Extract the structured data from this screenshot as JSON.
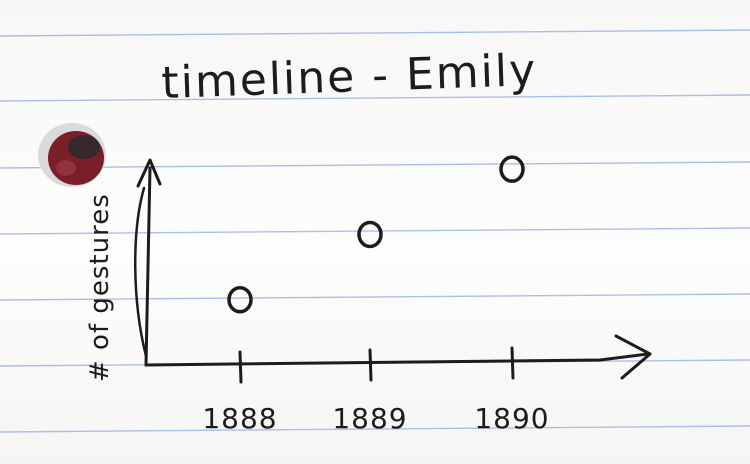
{
  "chart_data": {
    "type": "scatter",
    "title": "timeline - Emily",
    "xlabel": "",
    "ylabel": "# of gestures",
    "categories": [
      "1888",
      "1889",
      "1890"
    ],
    "values": [
      1,
      2,
      3
    ],
    "ylim": [
      0,
      3.6
    ],
    "grid": false,
    "marker": "open-circle"
  }
}
